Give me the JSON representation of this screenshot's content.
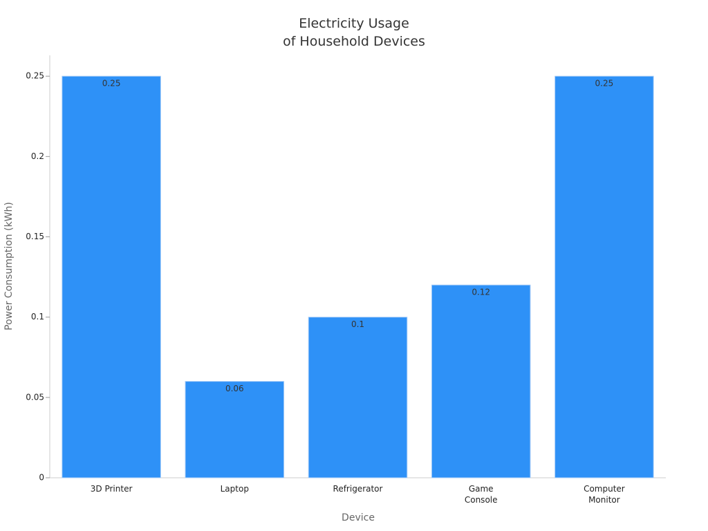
{
  "chart_data": {
    "type": "bar",
    "title": "Electricity Usage\nof Household Devices",
    "x_label": "Device",
    "y_label": "Power Consumption (kWh)",
    "categories": [
      "3D Printer",
      "Laptop",
      "Refrigerator",
      "Game\nConsole",
      "Computer\nMonitor"
    ],
    "values": [
      0.25,
      0.06,
      0.1,
      0.12,
      0.25
    ],
    "color": "#2e91f7",
    "ylim": [
      0,
      0.263
    ],
    "yticks": [
      0,
      0.05,
      0.1,
      0.15,
      0.2,
      0.25
    ],
    "grid": false
  }
}
